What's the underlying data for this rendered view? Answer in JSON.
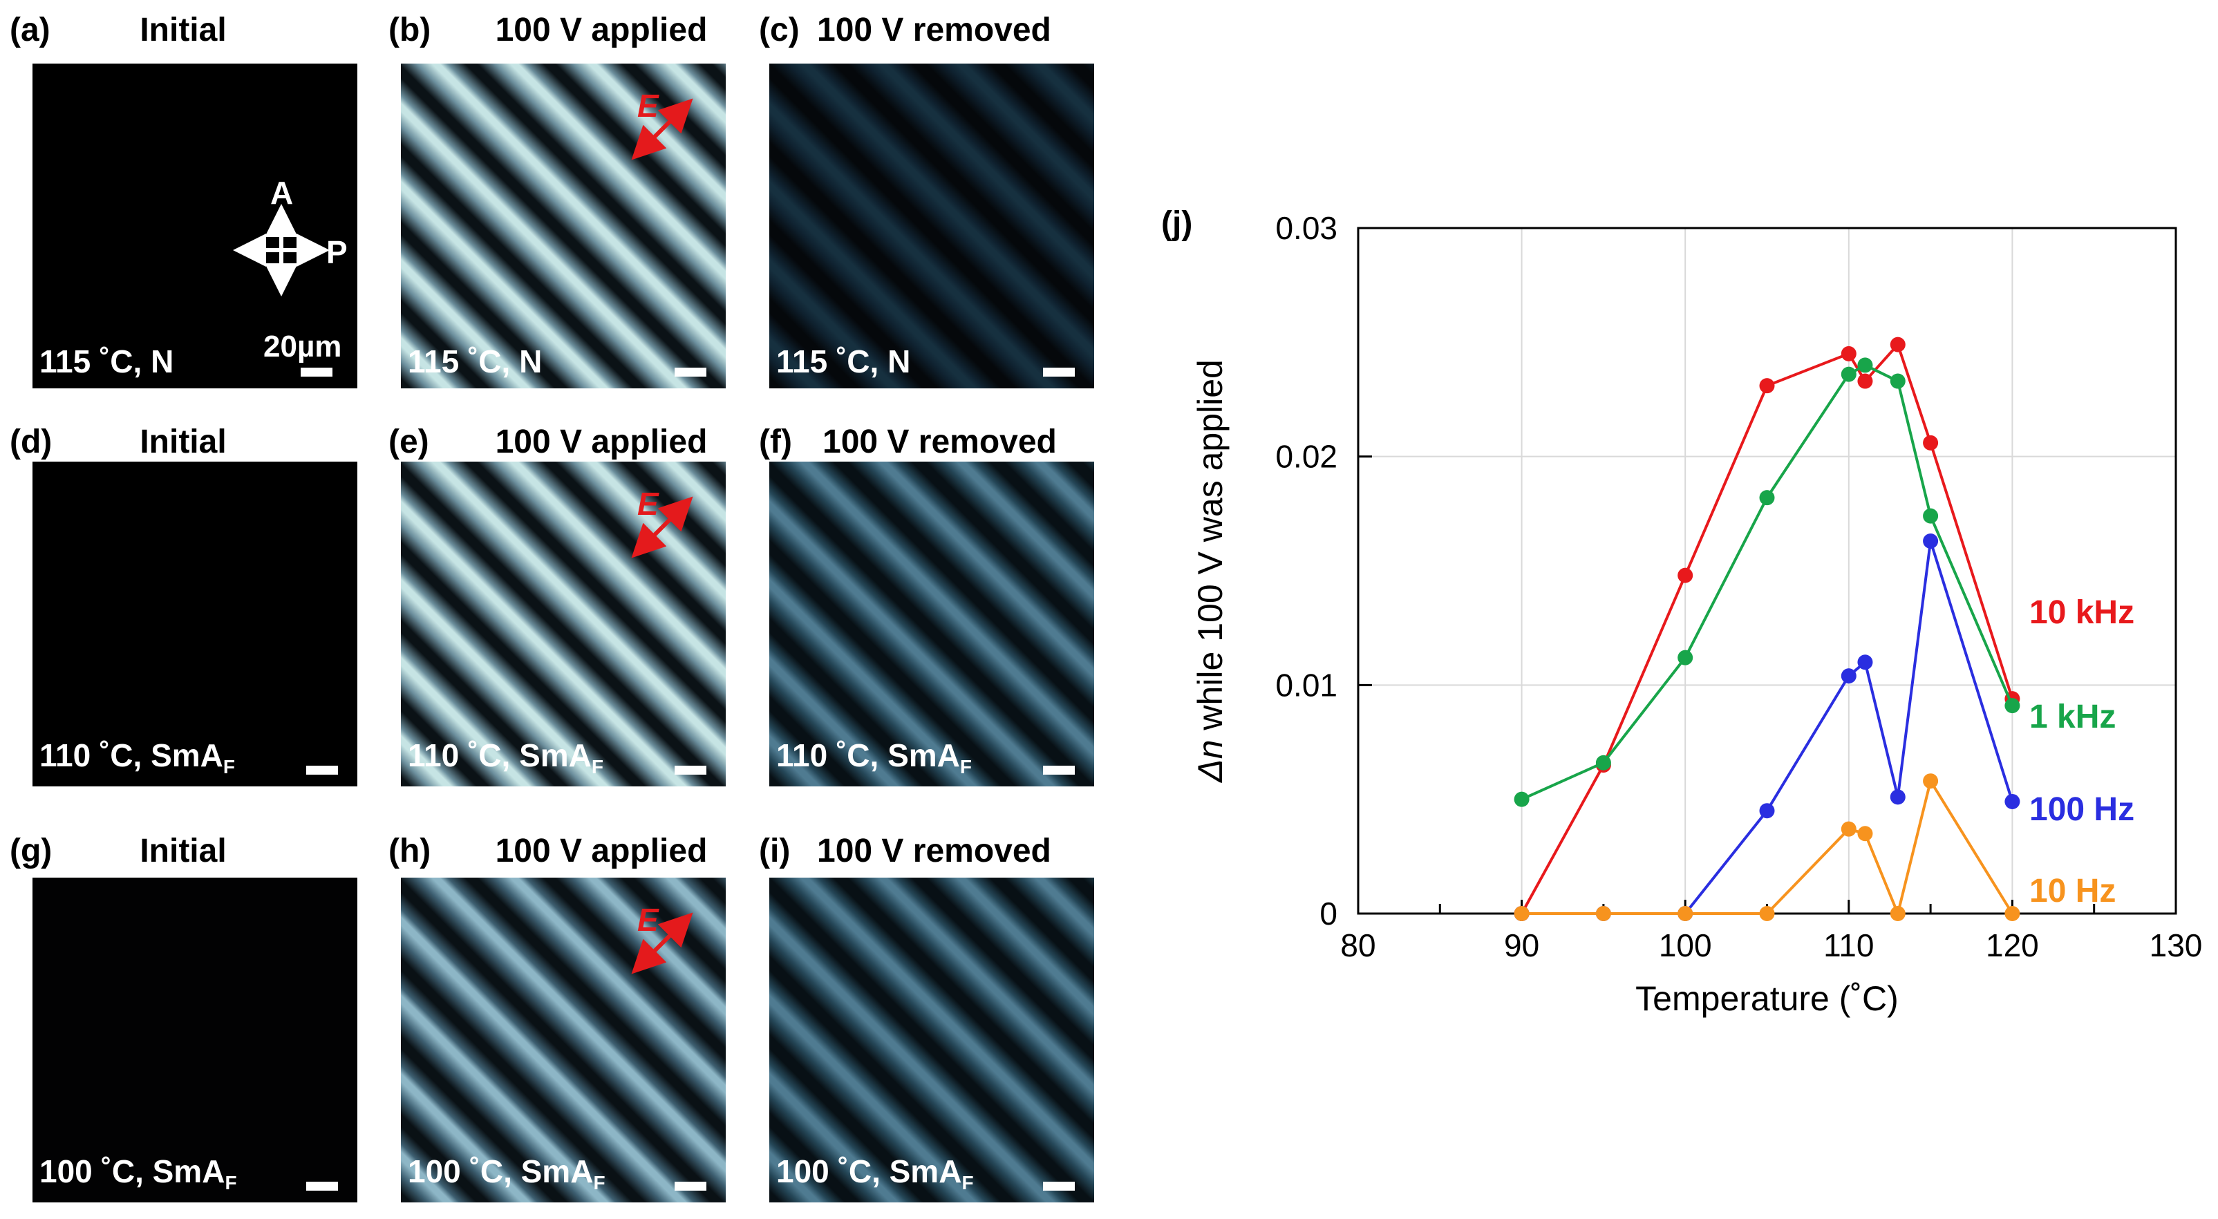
{
  "panels": [
    {
      "label": "(a)",
      "title": "Initial",
      "caption": "115 ˚C, N",
      "style": "initial",
      "scale_label": "20µm",
      "polarizer": {
        "a": "A",
        "p": "P"
      }
    },
    {
      "label": "(b)",
      "title": "100 V applied",
      "caption": "115 ˚C, N",
      "style": "bright",
      "field_label": "E"
    },
    {
      "label": "(c)",
      "title": "100 V removed",
      "caption": "115 ˚C, N",
      "style": "dark"
    },
    {
      "label": "(d)",
      "title": "Initial",
      "caption": "110 ˚C, SmA",
      "caption_sub": "F",
      "style": "initial"
    },
    {
      "label": "(e)",
      "title": "100 V applied",
      "caption": "110 ˚C, SmA",
      "caption_sub": "F",
      "style": "bright",
      "field_label": "E"
    },
    {
      "label": "(f)",
      "title": "100 V removed",
      "caption": "110 ˚C, SmA",
      "caption_sub": "F",
      "style": "blue"
    },
    {
      "label": "(g)",
      "title": "Initial",
      "caption": "100 ˚C, SmA",
      "caption_sub": "F",
      "style": "initial-dim"
    },
    {
      "label": "(h)",
      "title": "100 V applied",
      "caption": "100 ˚C, SmA",
      "caption_sub": "F",
      "style": "mid",
      "field_label": "E"
    },
    {
      "label": "(i)",
      "title": "100 V removed",
      "caption": "100 ˚C, SmA",
      "caption_sub": "F",
      "style": "blue"
    }
  ],
  "chart_label": "(j)",
  "chart_data": {
    "type": "line",
    "xlabel": "Temperature (˚C)",
    "ylabel_italic": "Δn",
    "ylabel_rest": " while 100 V was applied",
    "xlim": [
      80,
      130
    ],
    "ylim": [
      0,
      0.03
    ],
    "xticks": [
      80,
      90,
      100,
      110,
      120,
      130
    ],
    "yticks": [
      0,
      0.01,
      0.02,
      0.03
    ],
    "ytick_labels": [
      "0",
      "0.01",
      "0.02",
      "0.03"
    ],
    "grid": true,
    "series": [
      {
        "name": "10 kHz",
        "color": "#e8191c",
        "x": [
          90,
          95,
          100,
          105,
          110,
          111,
          113,
          115,
          120
        ],
        "y": [
          0,
          0.0065,
          0.0148,
          0.0231,
          0.0245,
          0.0233,
          0.0249,
          0.0206,
          0.0094
        ]
      },
      {
        "name": "1 kHz",
        "color": "#18a54a",
        "x": [
          90,
          95,
          100,
          105,
          110,
          111,
          113,
          115,
          120
        ],
        "y": [
          0.005,
          0.0066,
          0.0112,
          0.0182,
          0.0236,
          0.024,
          0.0233,
          0.0174,
          0.0091
        ]
      },
      {
        "name": "100 Hz",
        "color": "#2a2ee0",
        "x": [
          90,
          95,
          100,
          105,
          110,
          111,
          113,
          115,
          120
        ],
        "y": [
          0,
          0,
          0,
          0.0045,
          0.0104,
          0.011,
          0.0051,
          0.0163,
          0.0049
        ]
      },
      {
        "name": "10 Hz",
        "color": "#f7931e",
        "x": [
          90,
          95,
          100,
          105,
          110,
          111,
          113,
          115,
          120
        ],
        "y": [
          0,
          0,
          0,
          0,
          0.0037,
          0.0035,
          0,
          0.0058,
          0
        ]
      }
    ]
  }
}
